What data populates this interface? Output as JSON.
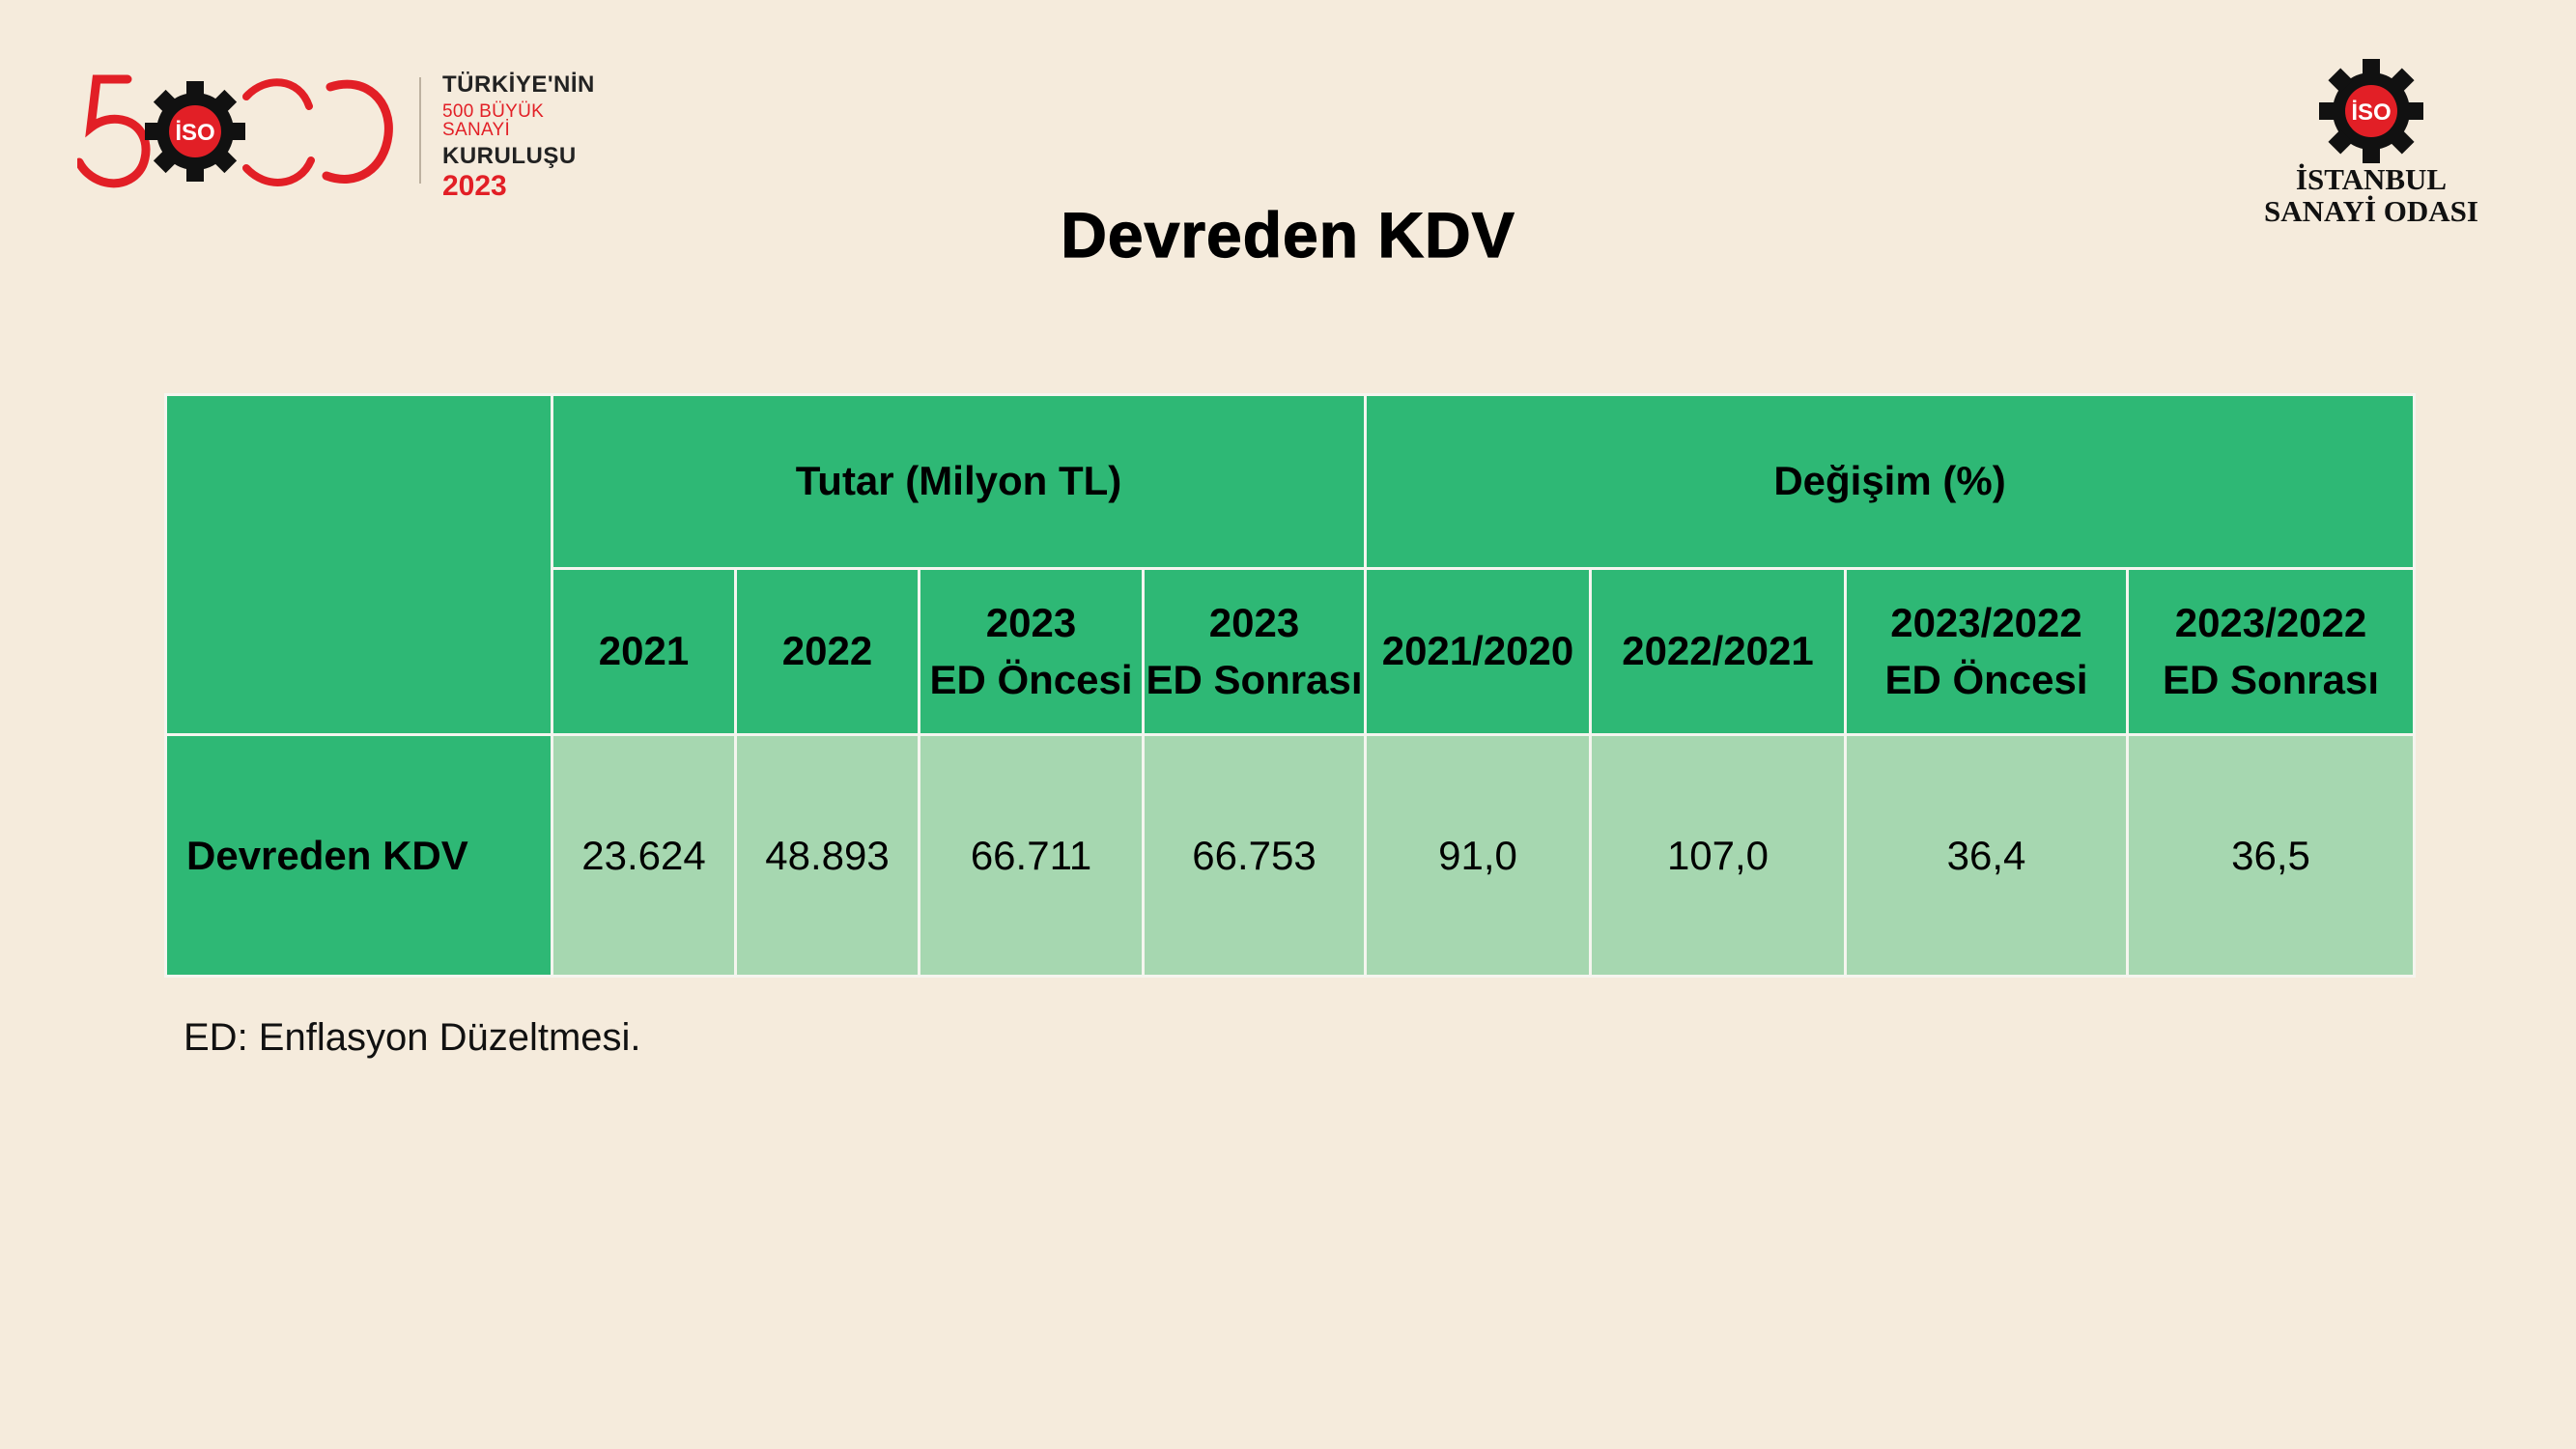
{
  "logo_left": {
    "number": "500",
    "line1": "TÜRKİYE'NİN",
    "line2": "500 BÜYÜK SANAYİ",
    "line3": "KURULUŞU",
    "line4": "2023"
  },
  "logo_right": {
    "emblem_text": "İSO",
    "line1": "İSTANBUL",
    "line2": "SANAYİ ODASI"
  },
  "title": "Devreden KDV",
  "table": {
    "group_headers": [
      "Tutar (Milyon TL)",
      "Değişim (%)"
    ],
    "columns": [
      {
        "line1": "2021",
        "line2": ""
      },
      {
        "line1": "2022",
        "line2": ""
      },
      {
        "line1": "2023",
        "line2": "ED Öncesi"
      },
      {
        "line1": "2023",
        "line2": "ED Sonrası"
      },
      {
        "line1": "2021/2020",
        "line2": ""
      },
      {
        "line1": "2022/2021",
        "line2": ""
      },
      {
        "line1": "2023/2022",
        "line2": "ED Öncesi"
      },
      {
        "line1": "2023/2022",
        "line2": "ED Sonrası"
      }
    ],
    "row": {
      "label": "Devreden KDV",
      "values": [
        "23.624",
        "48.893",
        "66.711",
        "66.753",
        "91,0",
        "107,0",
        "36,4",
        "36,5"
      ]
    }
  },
  "note": "ED: Enflasyon Düzeltmesi.",
  "colors": {
    "background": "#f5ebdc",
    "header_green": "#2eb875",
    "cell_green": "#a6d7b0",
    "brand_red": "#e21f26"
  }
}
